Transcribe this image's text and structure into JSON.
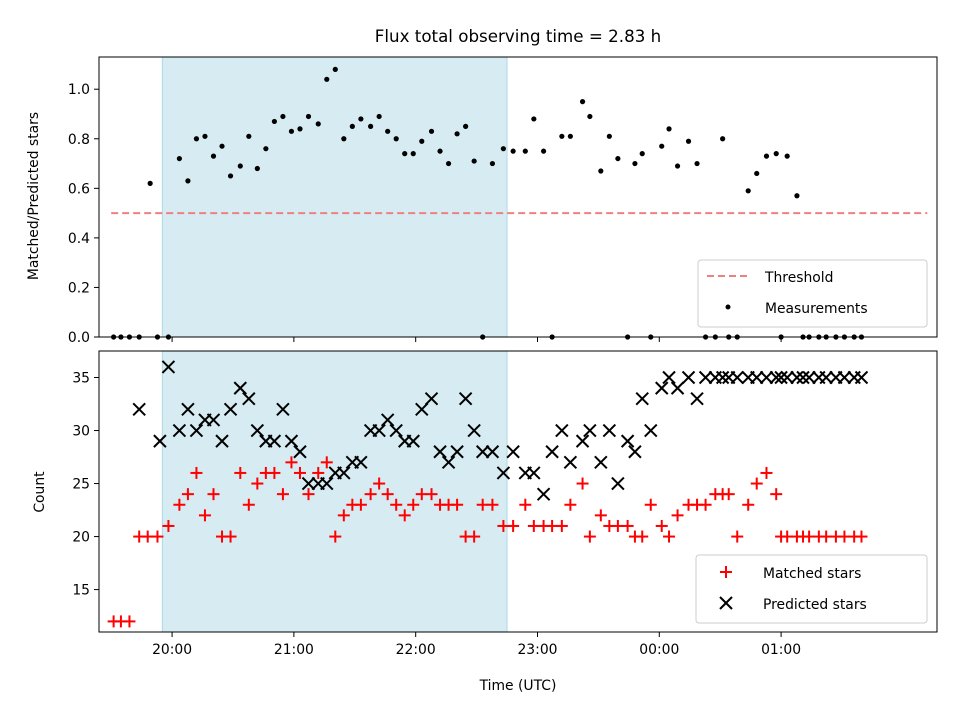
{
  "chart_data": [
    {
      "type": "scatter",
      "title": "Flux total observing time = 2.83 h",
      "xlabel": "",
      "ylabel": "Matched/Predicted stars",
      "xlim": [
        -0.6,
        6.28
      ],
      "ylim": [
        0.0,
        1.13
      ],
      "yticks": [
        0.0,
        0.2,
        0.4,
        0.6,
        0.8,
        1.0
      ],
      "ytick_labels": [
        "0.0",
        "0.2",
        "0.4",
        "0.6",
        "0.8",
        "1.0"
      ],
      "shaded_region": [
        -0.08,
        2.75
      ],
      "shaded_color": "#add8e6",
      "legend_position": "lower right",
      "threshold": {
        "name": "Threshold",
        "y": 0.5,
        "x_range": [
          -0.5,
          6.2
        ],
        "color": "#f08080",
        "style": "dashed"
      },
      "series": [
        {
          "name": "Measurements",
          "color": "#000000",
          "marker": "dot",
          "x": [
            -0.48,
            -0.42,
            -0.35,
            -0.27,
            -0.18,
            -0.12,
            -0.03,
            0.06,
            0.13,
            0.2,
            0.27,
            0.34,
            0.41,
            0.48,
            0.56,
            0.63,
            0.7,
            0.77,
            0.84,
            0.91,
            0.98,
            1.05,
            1.12,
            1.2,
            1.27,
            1.34,
            1.41,
            1.48,
            1.55,
            1.63,
            1.7,
            1.77,
            1.84,
            1.91,
            1.98,
            2.05,
            2.13,
            2.2,
            2.27,
            2.34,
            2.41,
            2.48,
            2.55,
            2.63,
            2.72,
            2.8,
            2.9,
            2.97,
            3.05,
            3.12,
            3.2,
            3.27,
            3.37,
            3.43,
            3.52,
            3.59,
            3.66,
            3.74,
            3.8,
            3.86,
            3.93,
            4.02,
            4.08,
            4.15,
            4.24,
            4.31,
            4.38,
            4.46,
            4.52,
            4.57,
            4.64,
            4.73,
            4.8,
            4.88,
            4.96,
            5.0,
            5.05,
            5.13,
            5.18,
            5.23,
            5.31,
            5.37,
            5.45,
            5.52,
            5.6,
            5.66
          ],
          "y": [
            0.0,
            0.0,
            0.0,
            0.0,
            0.62,
            0.0,
            0.0,
            0.72,
            0.63,
            0.8,
            0.81,
            0.73,
            0.77,
            0.65,
            0.69,
            0.81,
            0.68,
            0.76,
            0.87,
            0.89,
            0.83,
            0.84,
            0.89,
            0.86,
            1.04,
            1.08,
            0.8,
            0.85,
            0.88,
            0.85,
            0.89,
            0.83,
            0.8,
            0.74,
            0.74,
            0.79,
            0.83,
            0.75,
            0.7,
            0.82,
            0.85,
            0.71,
            0.0,
            0.7,
            0.76,
            0.75,
            0.75,
            0.88,
            0.75,
            0.0,
            0.81,
            0.81,
            0.95,
            0.89,
            0.67,
            0.81,
            0.72,
            0.0,
            0.7,
            0.74,
            0.0,
            0.77,
            0.84,
            0.69,
            0.79,
            0.7,
            0.0,
            0.0,
            0.8,
            0.0,
            0.0,
            0.59,
            0.66,
            0.73,
            0.74,
            0.0,
            0.73,
            0.57,
            0.0,
            0.0,
            0.0,
            0.0,
            0.0,
            0.0,
            0.0,
            0.0
          ]
        }
      ]
    },
    {
      "type": "scatter",
      "title": "",
      "xlabel": "Time (UTC)",
      "ylabel": "Count",
      "xlim": [
        -0.6,
        6.28
      ],
      "ylim": [
        11.0,
        37.5
      ],
      "yticks": [
        15,
        20,
        25,
        30,
        35
      ],
      "ytick_labels": [
        "15",
        "20",
        "25",
        "30",
        "35"
      ],
      "xticks": [
        0,
        1,
        2,
        3,
        4,
        5
      ],
      "xtick_labels": [
        "20:00",
        "21:00",
        "22:00",
        "23:00",
        "00:00",
        "01:00"
      ],
      "shaded_region": [
        -0.08,
        2.75
      ],
      "shaded_color": "#add8e6",
      "legend_position": "lower right",
      "series": [
        {
          "name": "Matched stars",
          "color": "#ff0000",
          "marker": "plus",
          "x": [
            -0.48,
            -0.42,
            -0.35,
            -0.27,
            -0.2,
            -0.12,
            -0.03,
            0.06,
            0.13,
            0.2,
            0.27,
            0.34,
            0.41,
            0.48,
            0.56,
            0.63,
            0.7,
            0.77,
            0.84,
            0.91,
            0.98,
            1.05,
            1.12,
            1.2,
            1.27,
            1.34,
            1.41,
            1.48,
            1.55,
            1.63,
            1.7,
            1.77,
            1.84,
            1.91,
            1.98,
            2.05,
            2.13,
            2.2,
            2.27,
            2.34,
            2.41,
            2.48,
            2.55,
            2.63,
            2.72,
            2.8,
            2.9,
            2.97,
            3.05,
            3.12,
            3.2,
            3.27,
            3.37,
            3.43,
            3.52,
            3.59,
            3.66,
            3.74,
            3.8,
            3.86,
            3.93,
            4.02,
            4.08,
            4.15,
            4.24,
            4.31,
            4.38,
            4.46,
            4.52,
            4.57,
            4.64,
            4.73,
            4.8,
            4.88,
            4.96,
            5.0,
            5.05,
            5.13,
            5.18,
            5.23,
            5.31,
            5.37,
            5.45,
            5.52,
            5.6,
            5.66
          ],
          "y": [
            12,
            12,
            12,
            20,
            20,
            20,
            21,
            23,
            24,
            26,
            22,
            24,
            20,
            20,
            26,
            23,
            25,
            26,
            26,
            24,
            27,
            26,
            24,
            26,
            27,
            20,
            22,
            23,
            23,
            24,
            25,
            24,
            23,
            22,
            23,
            24,
            24,
            23,
            23,
            23,
            20,
            20,
            23,
            23,
            21,
            21,
            23,
            21,
            21,
            21,
            21,
            23,
            25,
            20,
            22,
            21,
            21,
            21,
            20,
            20,
            23,
            21,
            20,
            22,
            23,
            23,
            23,
            24,
            24,
            24,
            20,
            23,
            25,
            26,
            24,
            20,
            20,
            20,
            20,
            20,
            20,
            20,
            20,
            20,
            20,
            20
          ]
        },
        {
          "name": "Predicted stars",
          "color": "#000000",
          "marker": "x",
          "x": [
            -0.27,
            -0.1,
            -0.03,
            0.06,
            0.13,
            0.2,
            0.27,
            0.34,
            0.41,
            0.48,
            0.56,
            0.63,
            0.7,
            0.77,
            0.84,
            0.91,
            0.98,
            1.05,
            1.12,
            1.2,
            1.27,
            1.34,
            1.41,
            1.48,
            1.55,
            1.63,
            1.7,
            1.77,
            1.84,
            1.91,
            1.98,
            2.05,
            2.13,
            2.2,
            2.27,
            2.34,
            2.41,
            2.48,
            2.55,
            2.63,
            2.72,
            2.8,
            2.9,
            2.97,
            3.05,
            3.12,
            3.2,
            3.27,
            3.37,
            3.43,
            3.52,
            3.59,
            3.66,
            3.74,
            3.8,
            3.86,
            3.93,
            4.02,
            4.08,
            4.15,
            4.24,
            4.31,
            4.38,
            4.46,
            4.52,
            4.57,
            4.64,
            4.73,
            4.8,
            4.88,
            4.96,
            5.0,
            5.05,
            5.13,
            5.18,
            5.23,
            5.31,
            5.37,
            5.45,
            5.52,
            5.6,
            5.66
          ],
          "y": [
            32,
            29,
            36,
            30,
            32,
            30,
            31,
            31,
            29,
            32,
            34,
            33,
            30,
            29,
            29,
            32,
            29,
            28,
            25,
            25,
            25,
            26,
            26,
            27,
            27,
            30,
            30,
            31,
            30,
            29,
            29,
            32,
            33,
            28,
            27,
            28,
            33,
            30,
            28,
            28,
            26,
            28,
            26,
            26,
            24,
            28,
            30,
            27,
            29,
            30,
            27,
            30,
            25,
            29,
            28,
            33,
            30,
            34,
            35,
            34,
            35,
            33,
            35,
            35,
            35,
            35,
            35,
            35,
            35,
            35,
            35,
            35,
            35,
            35,
            35,
            35,
            35,
            35,
            35,
            35,
            35,
            35
          ]
        }
      ]
    }
  ]
}
